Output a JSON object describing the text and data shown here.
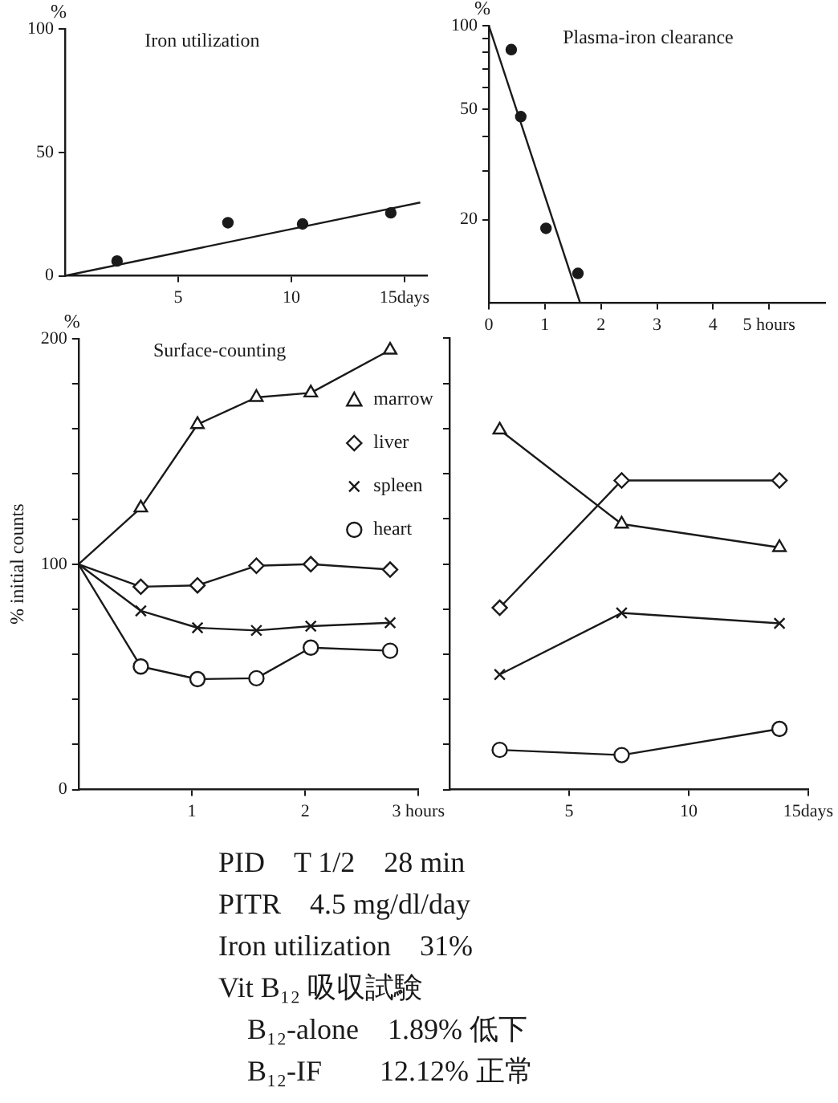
{
  "chart_data": [
    {
      "type": "scatter",
      "title": "Iron utilization",
      "annotations": [
        "%"
      ],
      "xlim": [
        0,
        16
      ],
      "xticks": [
        5,
        10,
        {
          "value": 15,
          "label": "15days"
        }
      ],
      "ylim": [
        0,
        100
      ],
      "yticks": [
        0,
        50,
        100
      ],
      "grid": false,
      "series": [
        {
          "type": "scatter",
          "color": "#1a1a1a",
          "marker": "circle",
          "x": [
            2.3,
            7.2,
            10.5,
            14.4
          ],
          "values": [
            6,
            21.5,
            21,
            25.5
          ]
        },
        {
          "type": "line",
          "color": "#1a1a1a",
          "marker": "none",
          "x": [
            0,
            15.7
          ],
          "values": [
            0,
            29.7
          ]
        }
      ]
    },
    {
      "type": "scatter",
      "title": "Plasma-iron clearance",
      "annotations": [
        "%"
      ],
      "log": "y",
      "xlim": [
        0,
        6
      ],
      "xticks": [
        0,
        1,
        2,
        3,
        4,
        {
          "value": 5,
          "label": "5 hours"
        }
      ],
      "ylim": [
        10,
        100
      ],
      "yticks": [
        {
          "value": 20,
          "label": "20"
        },
        {
          "value": 30,
          "label": null
        },
        {
          "value": 40,
          "label": null
        },
        {
          "value": 50,
          "label": "50"
        },
        {
          "value": 60,
          "label": null
        },
        {
          "value": 70,
          "label": null
        },
        {
          "value": 80,
          "label": null
        },
        {
          "value": 90,
          "label": null
        },
        {
          "value": 100,
          "label": "100"
        }
      ],
      "grid": false,
      "series": [
        {
          "type": "scatter",
          "color": "#1a1a1a",
          "marker": "circle",
          "x": [
            0.4,
            0.57,
            1.02,
            1.59
          ],
          "values": [
            82,
            47,
            18.6,
            12.8
          ]
        },
        {
          "type": "line",
          "color": "#1a1a1a",
          "marker": "none",
          "x": [
            0,
            1.63
          ],
          "values": [
            100,
            10
          ]
        }
      ]
    },
    {
      "type": "line",
      "title": "Surface-counting",
      "ylabel": "% initial counts",
      "annotations": [
        "%"
      ],
      "xlim": [
        0,
        3
      ],
      "xticks": [
        1,
        2,
        {
          "value": 3,
          "label": "3 hours"
        }
      ],
      "ylim": [
        0,
        200
      ],
      "yticks": [
        0,
        {
          "value": 20,
          "label": null
        },
        {
          "value": 40,
          "label": null
        },
        {
          "value": 60,
          "label": null
        },
        {
          "value": 80,
          "label": null
        },
        100,
        {
          "value": 120,
          "label": null
        },
        {
          "value": 140,
          "label": null
        },
        {
          "value": 160,
          "label": null
        },
        {
          "value": 180,
          "label": null
        },
        200
      ],
      "grid": false,
      "legend": "top right",
      "x": [
        0,
        0.55,
        1.05,
        1.57,
        2.05,
        2.75
      ],
      "series": [
        {
          "name": "marrow",
          "color": "#1a1a1a",
          "marker": "triangle",
          "values": [
            100,
            125,
            162,
            174,
            176,
            195
          ]
        },
        {
          "name": "liver",
          "color": "#1a1a1a",
          "marker": "diamond",
          "values": [
            100,
            90,
            90.6,
            99.3,
            100,
            97.6
          ]
        },
        {
          "name": "spleen",
          "color": "#1a1a1a",
          "marker": "cross",
          "values": [
            100,
            79.3,
            71.8,
            70.6,
            72.5,
            74
          ]
        },
        {
          "name": "heart",
          "color": "#1a1a1a",
          "marker": "circle",
          "values": [
            100,
            54.6,
            49,
            49.4,
            63,
            61.6
          ]
        }
      ]
    },
    {
      "type": "line",
      "xlim": [
        0,
        15
      ],
      "xticks": [
        5,
        10,
        {
          "value": 15,
          "label": "15days"
        }
      ],
      "ylim": [
        0,
        200
      ],
      "yticks": [
        {
          "value": 0,
          "label": null
        },
        {
          "value": 20,
          "label": null
        },
        {
          "value": 40,
          "label": null
        },
        {
          "value": 60,
          "label": null
        },
        {
          "value": 80,
          "label": null
        },
        {
          "value": 100,
          "label": null
        },
        {
          "value": 120,
          "label": null
        },
        {
          "value": 140,
          "label": null
        },
        {
          "value": 160,
          "label": null
        },
        {
          "value": 180,
          "label": null
        },
        {
          "value": 200,
          "label": null
        }
      ],
      "grid": false,
      "tick_labels": "x",
      "x": [
        2.1,
        7.2,
        13.8
      ],
      "series": [
        {
          "color": "#1a1a1a",
          "marker": "triangle",
          "values": [
            159.4,
            117.7,
            107.3
          ]
        },
        {
          "color": "#1a1a1a",
          "marker": "diamond",
          "values": [
            80.6,
            137,
            137
          ]
        },
        {
          "color": "#1a1a1a",
          "marker": "cross",
          "values": [
            51,
            78.3,
            73.7
          ]
        },
        {
          "color": "#1a1a1a",
          "marker": "circle",
          "values": [
            17.6,
            15.3,
            26.9
          ]
        }
      ]
    },
    {
      "type": "other",
      "annotations": [
        "PID　T 1/2　28 min",
        "PITR　4.5 mg/dl/day",
        "Iron utilization　31%",
        "Vit B₁₂ 吸収試験",
        "　B₁₂-alone　1.89% 低下",
        "　B₁₂-IF　　12.12% 正常"
      ]
    }
  ]
}
